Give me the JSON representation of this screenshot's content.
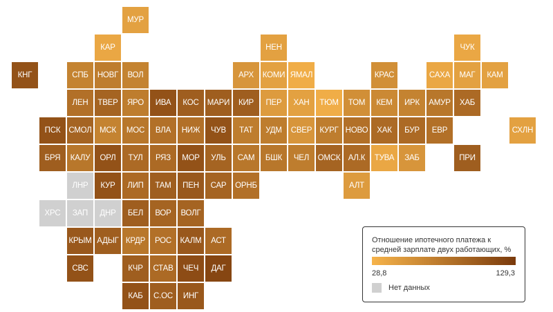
{
  "legend": {
    "title": "Отношение ипотечного платежа к средней зарплате двух работающих, %",
    "min_label": "28,8",
    "max_label": "129,3",
    "no_data_label": "Нет данных",
    "min_value": 28.8,
    "max_value": 129.3,
    "color_low": "#f6b34a",
    "color_high": "#7a3a0c",
    "no_data_color": "#d0d0d0"
  },
  "regions": [
    {
      "label": "МУР",
      "row": 0,
      "col": 4,
      "level": 0.15
    },
    {
      "label": "КАР",
      "row": 1,
      "col": 3,
      "level": 0.1
    },
    {
      "label": "НЕН",
      "row": 1,
      "col": 9,
      "level": 0.15
    },
    {
      "label": "ЧУК",
      "row": 1,
      "col": 16,
      "level": 0.1
    },
    {
      "label": "КНГ",
      "row": 2,
      "col": 0,
      "level": 0.8
    },
    {
      "label": "СПБ",
      "row": 2,
      "col": 2,
      "level": 0.4
    },
    {
      "label": "НОВГ",
      "row": 2,
      "col": 3,
      "level": 0.45
    },
    {
      "label": "ВОЛ",
      "row": 2,
      "col": 4,
      "level": 0.4
    },
    {
      "label": "АРХ",
      "row": 2,
      "col": 8,
      "level": 0.25
    },
    {
      "label": "КОМИ",
      "row": 2,
      "col": 9,
      "level": 0.15
    },
    {
      "label": "ЯМАЛ",
      "row": 2,
      "col": 10,
      "level": 0.05
    },
    {
      "label": "КРАС",
      "row": 2,
      "col": 13,
      "level": 0.3
    },
    {
      "label": "САХА",
      "row": 2,
      "col": 15,
      "level": 0.1
    },
    {
      "label": "МАГ",
      "row": 2,
      "col": 16,
      "level": 0.15
    },
    {
      "label": "КАМ",
      "row": 2,
      "col": 17,
      "level": 0.15
    },
    {
      "label": "ЛЕН",
      "row": 3,
      "col": 2,
      "level": 0.55
    },
    {
      "label": "ТВЕР",
      "row": 3,
      "col": 3,
      "level": 0.65
    },
    {
      "label": "ЯРО",
      "row": 3,
      "col": 4,
      "level": 0.45
    },
    {
      "label": "ИВА",
      "row": 3,
      "col": 5,
      "level": 0.8
    },
    {
      "label": "КОС",
      "row": 3,
      "col": 6,
      "level": 0.7
    },
    {
      "label": "МАРИ",
      "row": 3,
      "col": 7,
      "level": 0.7
    },
    {
      "label": "КИР",
      "row": 3,
      "col": 8,
      "level": 0.7
    },
    {
      "label": "ПЕР",
      "row": 3,
      "col": 9,
      "level": 0.2
    },
    {
      "label": "ХАН",
      "row": 3,
      "col": 10,
      "level": 0.15
    },
    {
      "label": "ТЮМ",
      "row": 3,
      "col": 11,
      "level": 0.05
    },
    {
      "label": "ТОМ",
      "row": 3,
      "col": 12,
      "level": 0.3
    },
    {
      "label": "КЕМ",
      "row": 3,
      "col": 13,
      "level": 0.35
    },
    {
      "label": "ИРК",
      "row": 3,
      "col": 14,
      "level": 0.4
    },
    {
      "label": "АМУР",
      "row": 3,
      "col": 15,
      "level": 0.5
    },
    {
      "label": "ХАБ",
      "row": 3,
      "col": 16,
      "level": 0.6
    },
    {
      "label": "ПСК",
      "row": 4,
      "col": 1,
      "level": 0.8
    },
    {
      "label": "СМОЛ",
      "row": 4,
      "col": 2,
      "level": 0.65
    },
    {
      "label": "МСК",
      "row": 4,
      "col": 3,
      "level": 0.4
    },
    {
      "label": "МОС",
      "row": 4,
      "col": 4,
      "level": 0.5
    },
    {
      "label": "ВЛА",
      "row": 4,
      "col": 5,
      "level": 0.55
    },
    {
      "label": "НИЖ",
      "row": 4,
      "col": 6,
      "level": 0.55
    },
    {
      "label": "ЧУВ",
      "row": 4,
      "col": 7,
      "level": 0.8
    },
    {
      "label": "ТАТ",
      "row": 4,
      "col": 8,
      "level": 0.45
    },
    {
      "label": "УДМ",
      "row": 4,
      "col": 9,
      "level": 0.45
    },
    {
      "label": "СВЕР",
      "row": 4,
      "col": 10,
      "level": 0.25
    },
    {
      "label": "КУРГ",
      "row": 4,
      "col": 11,
      "level": 0.45
    },
    {
      "label": "НОВО",
      "row": 4,
      "col": 12,
      "level": 0.55
    },
    {
      "label": "ХАК",
      "row": 4,
      "col": 13,
      "level": 0.6
    },
    {
      "label": "БУР",
      "row": 4,
      "col": 14,
      "level": 0.6
    },
    {
      "label": "ЕВР",
      "row": 4,
      "col": 15,
      "level": 0.55
    },
    {
      "label": "СХЛН",
      "row": 4,
      "col": 18,
      "level": 0.15
    },
    {
      "label": "БРЯ",
      "row": 5,
      "col": 1,
      "level": 0.7
    },
    {
      "label": "КАЛУ",
      "row": 5,
      "col": 2,
      "level": 0.5
    },
    {
      "label": "ОРЛ",
      "row": 5,
      "col": 3,
      "level": 0.8
    },
    {
      "label": "ТУЛ",
      "row": 5,
      "col": 4,
      "level": 0.6
    },
    {
      "label": "РЯЗ",
      "row": 5,
      "col": 5,
      "level": 0.6
    },
    {
      "label": "МОР",
      "row": 5,
      "col": 6,
      "level": 0.8
    },
    {
      "label": "УЛЬ",
      "row": 5,
      "col": 7,
      "level": 0.65
    },
    {
      "label": "САМ",
      "row": 5,
      "col": 8,
      "level": 0.5
    },
    {
      "label": "БШК",
      "row": 5,
      "col": 9,
      "level": 0.5
    },
    {
      "label": "ЧЕЛ",
      "row": 5,
      "col": 10,
      "level": 0.45
    },
    {
      "label": "ОМСК",
      "row": 5,
      "col": 11,
      "level": 0.65
    },
    {
      "label": "АЛ.К",
      "row": 5,
      "col": 12,
      "level": 0.6
    },
    {
      "label": "ТУВА",
      "row": 5,
      "col": 13,
      "level": 0.1
    },
    {
      "label": "ЗАБ",
      "row": 5,
      "col": 14,
      "level": 0.25
    },
    {
      "label": "ПРИ",
      "row": 5,
      "col": 16,
      "level": 0.7
    },
    {
      "label": "ЛНР",
      "row": 6,
      "col": 2,
      "level": null
    },
    {
      "label": "КУР",
      "row": 6,
      "col": 3,
      "level": 0.8
    },
    {
      "label": "ЛИП",
      "row": 6,
      "col": 4,
      "level": 0.6
    },
    {
      "label": "ТАМ",
      "row": 6,
      "col": 5,
      "level": 0.7
    },
    {
      "label": "ПЕН",
      "row": 6,
      "col": 6,
      "level": 0.75
    },
    {
      "label": "САР",
      "row": 6,
      "col": 7,
      "level": 0.65
    },
    {
      "label": "ОРНБ",
      "row": 6,
      "col": 8,
      "level": 0.55
    },
    {
      "label": "АЛТ",
      "row": 6,
      "col": 12,
      "level": 0.2
    },
    {
      "label": "ХРС",
      "row": 7,
      "col": 1,
      "level": null
    },
    {
      "label": "ЗАП",
      "row": 7,
      "col": 2,
      "level": null
    },
    {
      "label": "ДНР",
      "row": 7,
      "col": 3,
      "level": null
    },
    {
      "label": "БЕЛ",
      "row": 7,
      "col": 4,
      "level": 0.7
    },
    {
      "label": "ВОР",
      "row": 7,
      "col": 5,
      "level": 0.65
    },
    {
      "label": "ВОЛГ",
      "row": 7,
      "col": 6,
      "level": 0.65
    },
    {
      "label": "КРЫМ",
      "row": 8,
      "col": 2,
      "level": 0.75
    },
    {
      "label": "АДЫГ",
      "row": 8,
      "col": 3,
      "level": 0.7
    },
    {
      "label": "КРДР",
      "row": 8,
      "col": 4,
      "level": 0.5
    },
    {
      "label": "РОС",
      "row": 8,
      "col": 5,
      "level": 0.55
    },
    {
      "label": "КАЛМ",
      "row": 8,
      "col": 6,
      "level": 0.75
    },
    {
      "label": "АСТ",
      "row": 8,
      "col": 7,
      "level": 0.6
    },
    {
      "label": "СВС",
      "row": 9,
      "col": 2,
      "level": 0.8
    },
    {
      "label": "КЧР",
      "row": 9,
      "col": 4,
      "level": 0.7
    },
    {
      "label": "СТАВ",
      "row": 9,
      "col": 5,
      "level": 0.6
    },
    {
      "label": "ЧЕЧ",
      "row": 9,
      "col": 6,
      "level": 0.85
    },
    {
      "label": "ДАГ",
      "row": 9,
      "col": 7,
      "level": 0.9
    },
    {
      "label": "КАБ",
      "row": 10,
      "col": 4,
      "level": 0.8
    },
    {
      "label": "С.ОС",
      "row": 10,
      "col": 5,
      "level": 0.7
    },
    {
      "label": "ИНГ",
      "row": 10,
      "col": 6,
      "level": 0.75
    }
  ]
}
